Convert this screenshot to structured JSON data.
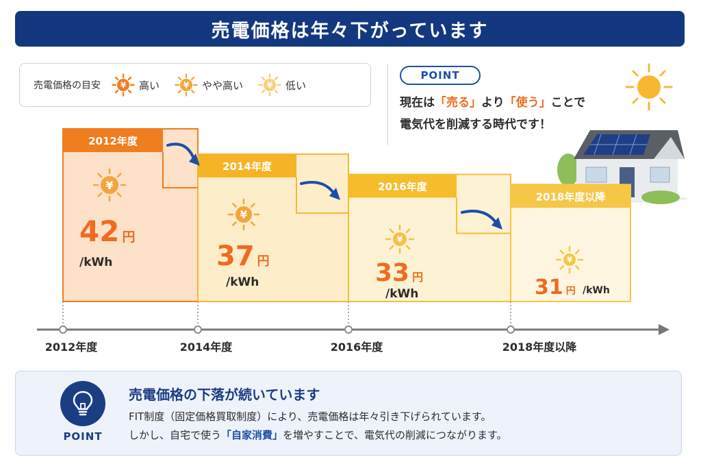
{
  "title": "売電価格は年々下がっています",
  "legend": {
    "title": "売電価格の目安",
    "items": [
      {
        "label": "高い",
        "color": "#f07d1e"
      },
      {
        "label": "やや高い",
        "color": "#f4a53a"
      },
      {
        "label": "低い",
        "color": "#f6cf7e"
      }
    ]
  },
  "point_box": {
    "label": "POINT",
    "line1_a": "現在は",
    "line1_hl1": "「売る」",
    "line1_b": "より",
    "line1_hl2": "「使う」",
    "line1_c": "ことで",
    "line2": "電気代を削減する時代です！"
  },
  "chart_data": {
    "type": "bar",
    "unit": "/kWh",
    "yen_suffix": "円",
    "currency_symbol": "¥",
    "categories": [
      "2012年度",
      "2014年度",
      "2016年度",
      "2018年度以降"
    ],
    "tab_labels": [
      "2012年度",
      "2014年度",
      "2016年度",
      "2018年度以降"
    ],
    "values": [
      42,
      37,
      33,
      31
    ],
    "colors": {
      "bar_fills": [
        "#fde1c8",
        "#fdeec9",
        "#fdf2d3",
        "#fef6e1"
      ],
      "bar_borders": [
        "#f07d1e",
        "#f4b73a",
        "#f5bf3c",
        "#f6c646"
      ],
      "tab_fills": [
        "#f07d1e",
        "#f4b425",
        "#f5bd2c",
        "#f6c646"
      ],
      "value_text": "#ef6b1f",
      "arrow": "#1d4fa6",
      "axis": "#777777"
    }
  },
  "bottom": {
    "point_label": "POINT",
    "heading": "売電価格の下落が続いています",
    "line1": "FIT制度（固定価格買取制度）により、売電価格は年々引き下げられています。",
    "line2_a": "しかし、自宅で使う",
    "line2_hl": "「自家消費」",
    "line2_b": "を増やすことで、電気代の削減につながります。"
  }
}
